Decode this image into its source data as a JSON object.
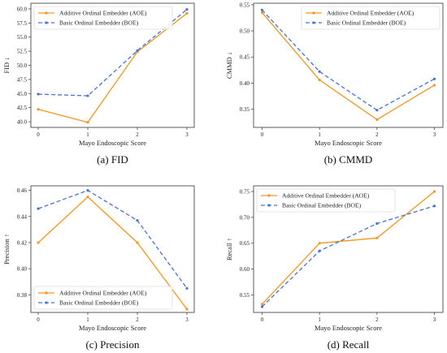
{
  "chart_data": [
    {
      "type": "line",
      "caption": "(a) FID",
      "xlabel": "Mayo Endoscopic Score",
      "ylabel": "FID ↓",
      "x": [
        0,
        1,
        2,
        3
      ],
      "xticks": [
        "0",
        "1",
        "2",
        "3"
      ],
      "ylim": [
        39.0,
        61.0
      ],
      "yticks": [
        "40.0",
        "42.5",
        "45.0",
        "47.5",
        "50.0",
        "52.5",
        "55.0",
        "57.5",
        "60.0"
      ],
      "ytick_values": [
        40.0,
        42.5,
        45.0,
        47.5,
        50.0,
        52.5,
        55.0,
        57.5,
        60.0
      ],
      "legend_position": "top-left",
      "series": [
        {
          "name": "Additive Ordinal Embedder (AOE)",
          "values": [
            42.2,
            39.9,
            52.4,
            59.2
          ],
          "color": "#f5961e",
          "style": "solid"
        },
        {
          "name": "Basic Ordinal Embedder (BOE)",
          "values": [
            44.9,
            44.6,
            52.6,
            59.9
          ],
          "color": "#4a72d4",
          "style": "dashed"
        }
      ]
    },
    {
      "type": "line",
      "caption": "(b) CMMD",
      "xlabel": "Mayo Endoscopic Score",
      "ylabel": "CMMD ↓",
      "x": [
        0,
        1,
        2,
        3
      ],
      "xticks": [
        "0",
        "1",
        "2",
        "3"
      ],
      "ylim": [
        0.315,
        0.553
      ],
      "yticks": [
        "0.35",
        "0.40",
        "0.45",
        "0.50",
        "0.55"
      ],
      "ytick_values": [
        0.35,
        0.4,
        0.45,
        0.5,
        0.55
      ],
      "legend_position": "top-right",
      "series": [
        {
          "name": "Additive Ordinal Embedder (AOE)",
          "values": [
            0.535,
            0.406,
            0.33,
            0.396
          ],
          "color": "#f5961e",
          "style": "solid"
        },
        {
          "name": "Basic Ordinal Embedder (BOE)",
          "values": [
            0.54,
            0.422,
            0.348,
            0.408
          ],
          "color": "#4a72d4",
          "style": "dashed"
        }
      ]
    },
    {
      "type": "line",
      "caption": "(c) Precision",
      "xlabel": "Mayo Endoscopic Score",
      "ylabel": "Precision ↑",
      "x": [
        0,
        1,
        2,
        3
      ],
      "xticks": [
        "0",
        "1",
        "2",
        "3"
      ],
      "ylim": [
        0.3665,
        0.4635
      ],
      "yticks": [
        "0.38",
        "0.40",
        "0.42",
        "0.44",
        "0.46"
      ],
      "ytick_values": [
        0.38,
        0.4,
        0.42,
        0.44,
        0.46
      ],
      "legend_position": "bottom-left",
      "series": [
        {
          "name": "Additive Ordinal Embedder (AOE)",
          "values": [
            0.42,
            0.455,
            0.42,
            0.369
          ],
          "color": "#f5961e",
          "style": "solid"
        },
        {
          "name": "Basic Ordinal Embedder (BOE)",
          "values": [
            0.446,
            0.46,
            0.437,
            0.385
          ],
          "color": "#4a72d4",
          "style": "dashed"
        }
      ]
    },
    {
      "type": "line",
      "caption": "(d) Recall",
      "xlabel": "Mayo Endoscopic Score",
      "ylabel": "Recall ↑",
      "x": [
        0,
        1,
        2,
        3
      ],
      "xticks": [
        "0",
        "1",
        "2",
        "3"
      ],
      "ylim": [
        0.516,
        0.761
      ],
      "yticks": [
        "0.55",
        "0.60",
        "0.65",
        "0.70",
        "0.75"
      ],
      "ytick_values": [
        0.55,
        0.6,
        0.65,
        0.7,
        0.75
      ],
      "legend_position": "top-left",
      "series": [
        {
          "name": "Additive Ordinal Embedder (AOE)",
          "values": [
            0.532,
            0.65,
            0.66,
            0.75
          ],
          "color": "#f5961e",
          "style": "solid"
        },
        {
          "name": "Basic Ordinal Embedder (BOE)",
          "values": [
            0.527,
            0.635,
            0.688,
            0.722
          ],
          "color": "#4a72d4",
          "style": "dashed"
        }
      ]
    }
  ]
}
